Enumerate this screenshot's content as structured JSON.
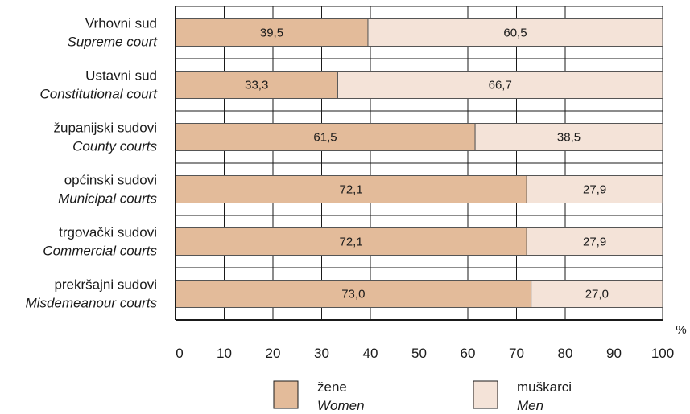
{
  "chart_data": {
    "type": "bar",
    "orientation": "horizontal",
    "stacked": true,
    "categories": [
      {
        "label": "Vrhovni sud",
        "sublabel": "Supreme court"
      },
      {
        "label": "Ustavni sud",
        "sublabel": "Constitutional court"
      },
      {
        "label": "županijski sudovi",
        "sublabel": "County courts"
      },
      {
        "label": "općinski sudovi",
        "sublabel": "Municipal courts"
      },
      {
        "label": "trgovački sudovi",
        "sublabel": "Commercial courts"
      },
      {
        "label": "prekršajni sudovi",
        "sublabel": "Misdemeanour courts"
      }
    ],
    "series": [
      {
        "name": "žene",
        "subname": "Women",
        "color": "#e3bb9a",
        "values": [
          39.5,
          33.3,
          61.5,
          72.1,
          72.1,
          73.0
        ],
        "labels": [
          "39,5",
          "33,3",
          "61,5",
          "72,1",
          "72,1",
          "73,0"
        ]
      },
      {
        "name": "muškarci",
        "subname": "Men",
        "color": "#f4e3d8",
        "values": [
          60.5,
          66.7,
          38.5,
          27.9,
          27.9,
          27.0
        ],
        "labels": [
          "60,5",
          "66,7",
          "38,5",
          "27,9",
          "27,9",
          "27,0"
        ]
      }
    ],
    "xlim": [
      0,
      100
    ],
    "xticks": [
      "0",
      "10",
      "20",
      "30",
      "40",
      "50",
      "60",
      "70",
      "80",
      "90",
      "100"
    ],
    "x_unit": "%",
    "grid": true,
    "legend_position": "bottom"
  }
}
